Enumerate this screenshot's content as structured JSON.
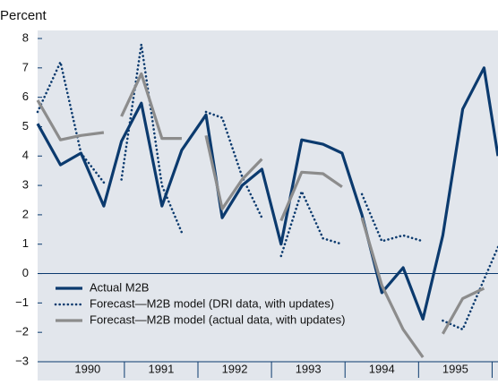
{
  "chart_data": {
    "type": "line",
    "y_label": "Percent",
    "xlim": [
      1989.82,
      1996.08
    ],
    "xticks": [
      {
        "value": 1990.5,
        "label": "1990"
      },
      {
        "value": 1991.5,
        "label": "1991"
      },
      {
        "value": 1992.5,
        "label": "1992"
      },
      {
        "value": 1993.5,
        "label": "1993"
      },
      {
        "value": 1994.5,
        "label": "1994"
      },
      {
        "value": 1995.5,
        "label": "1995"
      }
    ],
    "ylim": [
      -3,
      8
    ],
    "yticks": [
      {
        "value": -3,
        "label": "−3"
      },
      {
        "value": -2,
        "label": "−2"
      },
      {
        "value": -1,
        "label": "−1"
      },
      0,
      1,
      2,
      3,
      4,
      5,
      6,
      7,
      8
    ],
    "series": [
      {
        "name": "Actual M2B",
        "color": "#0b3a6e",
        "style": "solid",
        "segments": [
          {
            "x": [
              1989.82,
              1990.13,
              1990.41,
              1990.72,
              1990.96,
              1991.23,
              1991.51,
              1991.78,
              1992.11,
              1992.33,
              1992.6,
              1992.87,
              1993.13,
              1993.41,
              1993.7,
              1993.96,
              1994.23,
              1994.5,
              1994.79,
              1995.06,
              1995.33,
              1995.6,
              1995.89,
              1996.08
            ],
            "values": [
              5.1,
              3.7,
              4.1,
              2.3,
              4.5,
              5.8,
              2.3,
              4.2,
              5.4,
              1.9,
              3.0,
              3.55,
              1.0,
              4.55,
              4.4,
              4.1,
              2.0,
              -0.65,
              0.2,
              -1.55,
              1.3,
              5.6,
              7.0,
              4.0
            ]
          }
        ]
      },
      {
        "name": "Forecast—M2B model (DRI data, with updates)",
        "color": "#0b3a6e",
        "style": "dotted",
        "segments": [
          {
            "x": [
              1989.82,
              1990.13,
              1990.41,
              1990.72
            ],
            "values": [
              5.5,
              7.2,
              4.1,
              3.1
            ]
          },
          {
            "x": [
              1990.96,
              1991.23,
              1991.51,
              1991.78
            ],
            "values": [
              3.2,
              7.8,
              3.0,
              1.4
            ]
          },
          {
            "x": [
              1992.11,
              1992.33,
              1992.6,
              1992.87
            ],
            "values": [
              5.5,
              5.3,
              3.3,
              1.9
            ]
          },
          {
            "x": [
              1993.13,
              1993.41,
              1993.7,
              1993.96
            ],
            "values": [
              0.6,
              2.8,
              1.2,
              1.0
            ]
          },
          {
            "x": [
              1994.23,
              1994.5,
              1994.79,
              1995.06
            ],
            "values": [
              2.7,
              1.1,
              1.3,
              1.1
            ]
          },
          {
            "x": [
              1995.33,
              1995.6,
              1995.89,
              1996.08
            ],
            "values": [
              -1.6,
              -1.9,
              -0.2,
              0.9
            ]
          }
        ]
      },
      {
        "name": "Forecast—M2B model (actual data, with updates)",
        "color": "#8c8c8c",
        "style": "solid",
        "segments": [
          {
            "x": [
              1989.82,
              1990.13,
              1990.41,
              1990.72
            ],
            "values": [
              5.9,
              4.55,
              4.7,
              4.8
            ]
          },
          {
            "x": [
              1990.96,
              1991.23,
              1991.51,
              1991.78
            ],
            "values": [
              5.35,
              6.8,
              4.6,
              4.6
            ]
          },
          {
            "x": [
              1992.11,
              1992.33,
              1992.6,
              1992.87
            ],
            "values": [
              4.7,
              2.2,
              3.2,
              3.9
            ]
          },
          {
            "x": [
              1993.13,
              1993.41,
              1993.7,
              1993.96
            ],
            "values": [
              1.8,
              3.45,
              3.4,
              2.95
            ]
          },
          {
            "x": [
              1994.23,
              1994.5,
              1994.79,
              1995.06
            ],
            "values": [
              1.9,
              -0.4,
              -1.9,
              -2.85
            ]
          },
          {
            "x": [
              1995.33,
              1995.6,
              1995.89
            ],
            "values": [
              -2.05,
              -0.85,
              -0.5
            ]
          }
        ]
      }
    ]
  }
}
